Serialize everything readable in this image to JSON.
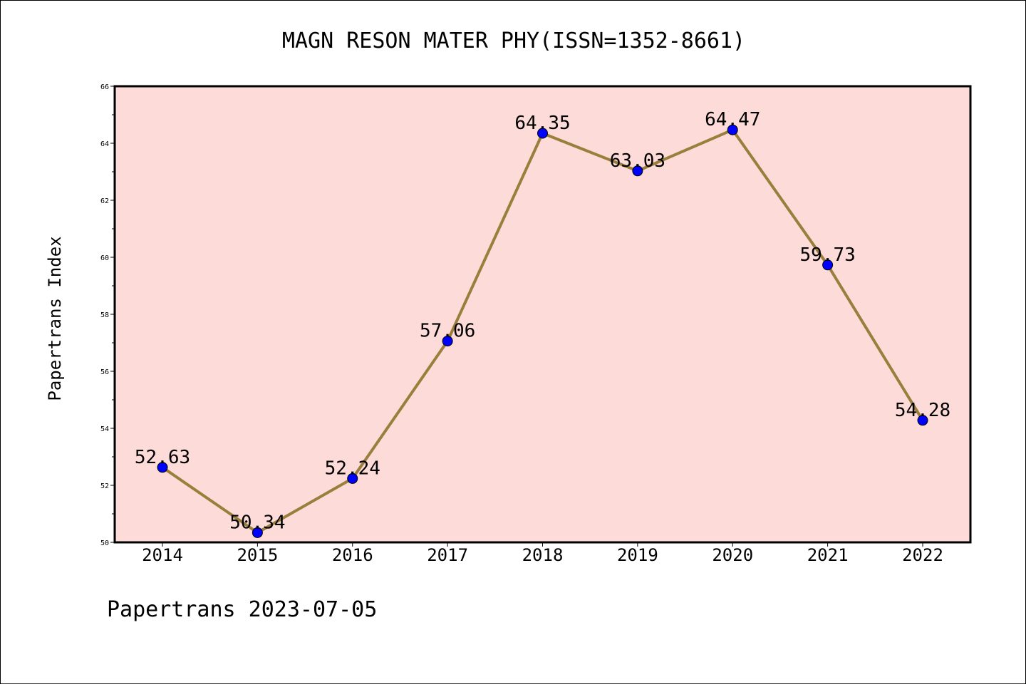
{
  "chart_data": {
    "type": "line",
    "title": "MAGN RESON MATER PHY(ISSN=1352-8661)",
    "xlabel": "",
    "ylabel": "Papertrans Index",
    "footer": "Papertrans 2023-07-05",
    "categories": [
      "2014",
      "2015",
      "2016",
      "2017",
      "2018",
      "2019",
      "2020",
      "2021",
      "2022"
    ],
    "values": [
      52.63,
      50.34,
      52.24,
      57.06,
      64.35,
      63.03,
      64.47,
      59.73,
      54.28
    ],
    "data_labels": [
      "52.63",
      "50.34",
      "52.24",
      "57.06",
      "64.35",
      "63.03",
      "64.47",
      "59.73",
      "54.28"
    ],
    "ylim": [
      50,
      66
    ],
    "yticks": [
      "50",
      "52",
      "54",
      "56",
      "58",
      "60",
      "62",
      "64",
      "66"
    ],
    "grid": false,
    "colors": {
      "plot_background": "#fddbd9",
      "line": "#9a7f3c",
      "marker": "#0000ff"
    }
  }
}
